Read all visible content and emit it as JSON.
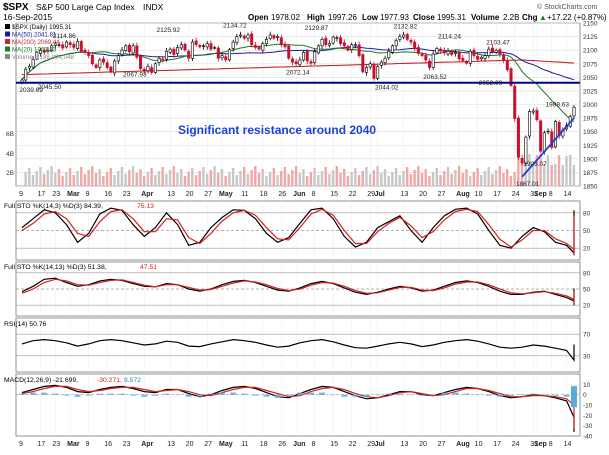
{
  "header": {
    "symbol": "$SPX",
    "name": "S&P 500 Large Cap Index",
    "exchange": "INDX",
    "date": "16-Sep-2015",
    "open_label": "Open",
    "open": "1978.02",
    "high_label": "High",
    "high": "1997.26",
    "low_label": "Low",
    "low": "1977.93",
    "close_label": "Close",
    "close": "1995.31",
    "volume_label": "Volume",
    "volume": "2.2B",
    "chg_label": "Chg",
    "chg": "+17.22 (+0.87%)",
    "change_arrow": "▲",
    "brand": "© StockCharts.com"
  },
  "colors": {
    "up": "#000000",
    "down": "#c8102e",
    "ma50": "#1a1aa6",
    "ma200": "#c82828",
    "ma20": "#1e7a1e",
    "support_line": "#00008b",
    "trendline": "#1c3fe0",
    "annotation": "#1c3fe0",
    "volume_up": "#c7c7c7",
    "volume_down": "#f2a7a7",
    "panel_bg": "#ffffff",
    "gridline": "#dcdcdc",
    "macd_hist": "#5aa9dc"
  },
  "chart_data": [
    {
      "type": "candlestick",
      "title": "$SPX (Daily) 1995.31",
      "legend": [
        {
          "label": "$SPX (Daily)",
          "value": "1995.31",
          "color": "#000000"
        },
        {
          "label": "MA(50)",
          "value": "2041.81",
          "color": "#1a1aa6"
        },
        {
          "label": "MA(200)",
          "value": "2069.44",
          "color": "#c82828"
        },
        {
          "label": "MA(20)",
          "value": "1961.13",
          "color": "#1e7a1e"
        },
        {
          "label": "Volume",
          "value": "2,188,994,048",
          "color": "#888888"
        }
      ],
      "legend_placement": "top-left",
      "ylim": [
        1850,
        2150
      ],
      "yticks": [
        1850,
        1875,
        1900,
        1925,
        1950,
        1975,
        2000,
        2025,
        2050,
        2075,
        2100,
        2125,
        2150
      ],
      "volume_ticks": [
        "2B",
        "4B",
        "6B"
      ],
      "xticks": [
        {
          "label": "9",
          "d": 0
        },
        {
          "label": "17",
          "d": 5
        },
        {
          "label": "23",
          "d": 9
        },
        {
          "label": "Mar",
          "d": 13
        },
        {
          "label": "9",
          "d": 18
        },
        {
          "label": "16",
          "d": 23
        },
        {
          "label": "23",
          "d": 28
        },
        {
          "label": "Apr",
          "d": 33
        },
        {
          "label": "13",
          "d": 40
        },
        {
          "label": "20",
          "d": 45
        },
        {
          "label": "27",
          "d": 50
        },
        {
          "label": "May",
          "d": 54
        },
        {
          "label": "11",
          "d": 60
        },
        {
          "label": "18",
          "d": 65
        },
        {
          "label": "26",
          "d": 70
        },
        {
          "label": "Jun",
          "d": 74
        },
        {
          "label": "8",
          "d": 79
        },
        {
          "label": "15",
          "d": 84
        },
        {
          "label": "22",
          "d": 89
        },
        {
          "label": "29",
          "d": 94
        },
        {
          "label": "Jul",
          "d": 96
        },
        {
          "label": "13",
          "d": 103
        },
        {
          "label": "20",
          "d": 108
        },
        {
          "label": "27",
          "d": 113
        },
        {
          "label": "Aug",
          "d": 118
        },
        {
          "label": "10",
          "d": 123
        },
        {
          "label": "17",
          "d": 128
        },
        {
          "label": "24",
          "d": 133
        },
        {
          "label": "31",
          "d": 138
        },
        {
          "label": "Sep",
          "d": 139
        },
        {
          "label": "8",
          "d": 143
        },
        {
          "label": "14",
          "d": 147
        }
      ],
      "price_annotations": [
        {
          "d": 2,
          "v": 2039.69,
          "label": "2039.69",
          "pos": "below"
        },
        {
          "d": 7,
          "v": 2045.5,
          "label": "2045.50",
          "pos": "below"
        },
        {
          "d": 11,
          "v": 2114.86,
          "label": "2114.86",
          "pos": "above"
        },
        {
          "d": 30,
          "v": 2067.93,
          "label": "2067.93",
          "pos": "below"
        },
        {
          "d": 39,
          "v": 2125.92,
          "label": "2125.92",
          "pos": "above"
        },
        {
          "d": 57,
          "v": 2134.72,
          "label": "2134.72",
          "pos": "above"
        },
        {
          "d": 74,
          "v": 2072.14,
          "label": "2072.14",
          "pos": "below"
        },
        {
          "d": 79,
          "v": 2129.87,
          "label": "2129.87",
          "pos": "above"
        },
        {
          "d": 98,
          "v": 2044.02,
          "label": "2044.02",
          "pos": "below"
        },
        {
          "d": 103,
          "v": 2132.82,
          "label": "2132.82",
          "pos": "above"
        },
        {
          "d": 111,
          "v": 2063.52,
          "label": "2063.52",
          "pos": "below"
        },
        {
          "d": 115,
          "v": 2114.24,
          "label": "2114.24",
          "pos": "above"
        },
        {
          "d": 126,
          "v": 2052.09,
          "label": "2052.09",
          "pos": "below"
        },
        {
          "d": 128,
          "v": 2103.47,
          "label": "2103.47",
          "pos": "above"
        },
        {
          "d": 136,
          "v": 1867.01,
          "label": "1867.01",
          "pos": "below"
        },
        {
          "d": 138,
          "v": 1903.07,
          "label": "1903.07",
          "pos": "below"
        },
        {
          "d": 144,
          "v": 1988.63,
          "label": "1988.63",
          "pos": "above"
        }
      ],
      "annotation_text": "Significant resistance around 2040",
      "support_level": 2040,
      "trendline": {
        "from": {
          "d": 135,
          "v": 1867
        },
        "to": {
          "d": 149,
          "v": 1975
        }
      },
      "volume_note": "volume bars estimated; larger late in series"
    },
    {
      "type": "line",
      "title": "Full STO %K(14,3) %D(3) 84.39, 75.13",
      "label_prefix": "Full STO %K(14,3) %D(3)",
      "k_value": "84.39",
      "d_value": "75.13",
      "ylim": [
        0,
        100
      ],
      "yticks": [
        20,
        50,
        80
      ],
      "reference_lines": [
        20,
        50,
        80
      ],
      "series": [
        {
          "name": "%K",
          "color": "#000000",
          "key": "fast_k",
          "values_sampled_every": 3,
          "values": [
            55,
            70,
            85,
            80,
            60,
            30,
            45,
            78,
            88,
            84,
            60,
            40,
            55,
            80,
            60,
            25,
            30,
            55,
            72,
            85,
            84,
            70,
            45,
            30,
            38,
            62,
            85,
            88,
            70,
            40,
            22,
            30,
            55,
            65,
            75,
            50,
            30,
            55,
            75,
            86,
            88,
            78,
            50,
            25,
            20,
            40,
            55,
            48,
            30,
            25,
            12,
            8,
            10,
            30,
            38,
            45,
            70,
            84
          ]
        },
        {
          "name": "%D",
          "color": "#d42020",
          "key": "fast_d",
          "values_sampled_every": 3,
          "values": [
            50,
            62,
            78,
            82,
            70,
            45,
            40,
            65,
            82,
            85,
            70,
            48,
            48,
            70,
            68,
            38,
            28,
            45,
            66,
            80,
            84,
            76,
            55,
            36,
            34,
            55,
            78,
            86,
            76,
            50,
            28,
            28,
            48,
            62,
            72,
            58,
            38,
            48,
            68,
            82,
            86,
            82,
            60,
            35,
            22,
            34,
            50,
            50,
            36,
            28,
            18,
            10,
            9,
            24,
            34,
            42,
            62,
            75
          ]
        }
      ]
    },
    {
      "type": "line",
      "title": "Full STO %K(14,13) %D(3) 51.38, 47.51",
      "label_prefix": "Full STO %K(14,13) %D(3)",
      "k_value": "51.38",
      "d_value": "47.51",
      "ylim": [
        0,
        100
      ],
      "yticks": [
        20,
        50,
        80
      ],
      "reference_lines": [
        20,
        50,
        80
      ],
      "series": [
        {
          "name": "%K",
          "color": "#000000",
          "key": "slow_k",
          "values_sampled_every": 3,
          "values": [
            45,
            55,
            68,
            70,
            62,
            55,
            58,
            65,
            68,
            66,
            60,
            55,
            54,
            60,
            58,
            50,
            46,
            50,
            58,
            64,
            66,
            62,
            55,
            48,
            46,
            52,
            60,
            64,
            60,
            52,
            44,
            40,
            44,
            50,
            55,
            52,
            46,
            48,
            55,
            62,
            65,
            62,
            55,
            46,
            40,
            40,
            44,
            46,
            40,
            34,
            28,
            22,
            20,
            24,
            30,
            36,
            44,
            51
          ]
        },
        {
          "name": "%D",
          "color": "#d42020",
          "key": "slow_d",
          "values_sampled_every": 3,
          "values": [
            42,
            50,
            62,
            68,
            65,
            58,
            57,
            62,
            66,
            67,
            62,
            57,
            54,
            58,
            58,
            53,
            48,
            49,
            55,
            61,
            65,
            63,
            58,
            51,
            47,
            50,
            57,
            62,
            61,
            55,
            47,
            42,
            43,
            48,
            53,
            53,
            48,
            47,
            52,
            59,
            63,
            63,
            58,
            50,
            43,
            41,
            43,
            45,
            42,
            37,
            31,
            25,
            21,
            22,
            27,
            33,
            40,
            47
          ]
        }
      ]
    },
    {
      "type": "line",
      "title": "RSI(14) 50.76",
      "label_prefix": "RSI(14)",
      "value": "50.76",
      "ylim": [
        0,
        100
      ],
      "yticks": [
        30,
        70
      ],
      "reference_lines": [
        30,
        70
      ],
      "series": [
        {
          "name": "RSI(14)",
          "color": "#000000",
          "key": "rsi",
          "values_sampled_every": 3,
          "values": [
            52,
            58,
            60,
            58,
            54,
            48,
            52,
            58,
            60,
            58,
            54,
            50,
            52,
            57,
            55,
            48,
            47,
            52,
            56,
            60,
            58,
            55,
            50,
            46,
            48,
            54,
            58,
            60,
            56,
            50,
            45,
            44,
            48,
            52,
            55,
            52,
            47,
            50,
            55,
            58,
            60,
            57,
            52,
            46,
            44,
            46,
            50,
            48,
            44,
            40,
            22,
            28,
            36,
            40,
            42,
            44,
            48,
            51
          ]
        }
      ]
    },
    {
      "type": "line",
      "title": "MACD(12,26,9) -21.699, -30.271, 8.572",
      "label_prefix": "MACD(12,26,9)",
      "macd_value": "-21.699",
      "signal_value": "-30.271",
      "hist_value": "8.572",
      "ylim": [
        -40,
        20
      ],
      "yticks": [
        -40,
        -30,
        -20,
        -10,
        0,
        10
      ],
      "reference_lines": [
        0
      ],
      "series": [
        {
          "name": "MACD",
          "color": "#000000",
          "key": "macd",
          "values_sampled_every": 3,
          "values": [
            2,
            5,
            8,
            9,
            7,
            3,
            2,
            5,
            7,
            8,
            6,
            3,
            2,
            5,
            5,
            1,
            -2,
            0,
            4,
            7,
            8,
            6,
            2,
            -2,
            -3,
            1,
            5,
            8,
            7,
            3,
            -1,
            -4,
            -3,
            0,
            3,
            3,
            0,
            -1,
            2,
            5,
            7,
            6,
            3,
            -1,
            -3,
            -2,
            0,
            -1,
            -3,
            -6,
            -22,
            -32,
            -36,
            -34,
            -30,
            -27,
            -24,
            -21.7
          ]
        },
        {
          "name": "Signal",
          "color": "#d42020",
          "key": "signal",
          "values_sampled_every": 3,
          "values": [
            1,
            3,
            6,
            8,
            8,
            5,
            3,
            4,
            6,
            7,
            7,
            5,
            3,
            4,
            5,
            3,
            0,
            -1,
            2,
            5,
            7,
            7,
            4,
            1,
            -2,
            -1,
            3,
            6,
            7,
            5,
            1,
            -2,
            -3,
            -1,
            2,
            3,
            1,
            -1,
            0,
            3,
            6,
            6,
            4,
            1,
            -2,
            -2,
            -1,
            -1,
            -2,
            -4,
            -10,
            -20,
            -28,
            -32,
            -33,
            -32,
            -31,
            -30.3
          ]
        },
        {
          "name": "Histogram",
          "color": "#5aa9dc",
          "key": "hist",
          "values_sampled_every": 3,
          "values": [
            1,
            2,
            2,
            1,
            -1,
            -2,
            -1,
            1,
            1,
            1,
            -1,
            -2,
            -1,
            1,
            0,
            -2,
            -2,
            1,
            2,
            2,
            1,
            -1,
            -2,
            -3,
            -1,
            2,
            2,
            2,
            0,
            -2,
            -2,
            -2,
            0,
            1,
            1,
            0,
            -1,
            0,
            2,
            2,
            1,
            0,
            -1,
            -2,
            -1,
            0,
            1,
            0,
            -1,
            -2,
            -12,
            -12,
            -8,
            -2,
            3,
            5,
            7,
            8.6
          ]
        }
      ]
    }
  ],
  "price_series": {
    "note": "approximate daily closes, one per trading day, read off the chart",
    "closes": [
      2045,
      2065,
      2070,
      2083,
      2096,
      2100,
      2096,
      2100,
      2108,
      2112,
      2110,
      2104,
      2115,
      2110,
      2105,
      2116,
      2098,
      2097,
      2090,
      2075,
      2068,
      2082,
      2078,
      2068,
      2060,
      2080,
      2090,
      2100,
      2108,
      2097,
      2108,
      2087,
      2066,
      2061,
      2070,
      2059,
      2075,
      2085,
      2082,
      2098,
      2102,
      2092,
      2105,
      2110,
      2100,
      2085,
      2115,
      2110,
      2106,
      2108,
      2112,
      2102,
      2105,
      2085,
      2090,
      2082,
      2101,
      2115,
      2125,
      2128,
      2122,
      2128,
      2110,
      2105,
      2102,
      2112,
      2120,
      2128,
      2122,
      2125,
      2110,
      2106,
      2085,
      2078,
      2075,
      2082,
      2096,
      2080,
      2076,
      2097,
      2108,
      2120,
      2110,
      2112,
      2124,
      2123,
      2112,
      2108,
      2100,
      2110,
      2110,
      2090,
      2060,
      2068,
      2075,
      2048,
      2070,
      2078,
      2085,
      2098,
      2108,
      2118,
      2125,
      2128,
      2120,
      2115,
      2103,
      2094,
      2090,
      2082,
      2068,
      2093,
      2103,
      2099,
      2095,
      2098,
      2092,
      2096,
      2084,
      2081,
      2076,
      2098,
      2090,
      2083,
      2087,
      2090,
      2102,
      2097,
      2100,
      2093,
      2081,
      2064,
      2035,
      1974,
      1903,
      1892,
      1940,
      1987,
      1988,
      1972,
      1914,
      1948,
      1951,
      1921,
      1969,
      1942,
      1953,
      1961,
      1978,
      1995
    ]
  }
}
